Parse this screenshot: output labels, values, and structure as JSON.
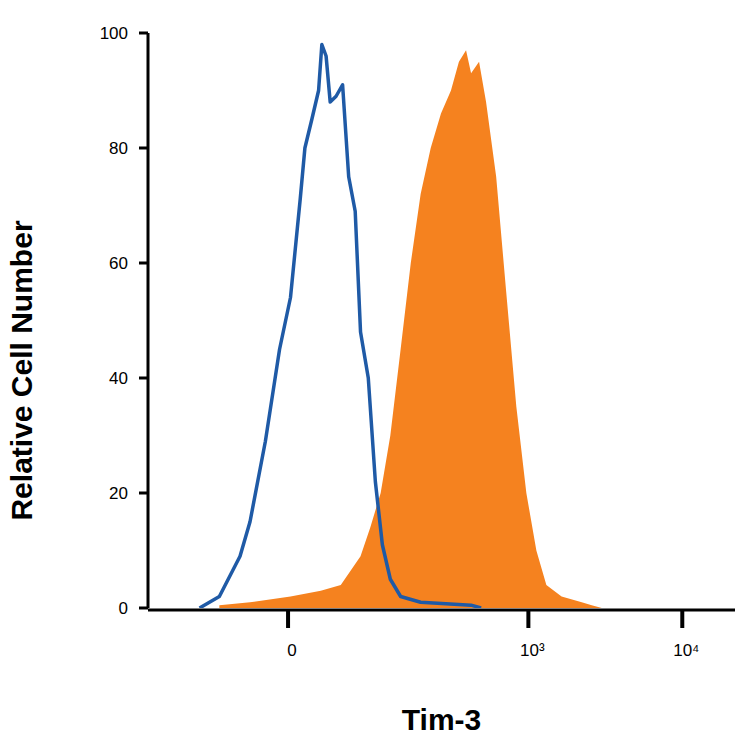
{
  "chart_data": {
    "type": "histogram",
    "x_label": "Tim-3",
    "y_label": "Relative Cell Number",
    "log": "x",
    "xlim": [
      -220,
      22000
    ],
    "ylim": [
      0,
      100
    ],
    "xticks": [
      {
        "value": 0,
        "label": "0"
      },
      {
        "value": 1000,
        "label": "10³"
      },
      {
        "value": 10000,
        "label": "10⁴"
      }
    ],
    "yticks": [
      0,
      20,
      40,
      60,
      80,
      100
    ],
    "series": [
      {
        "type": "area",
        "color": "#f5821f",
        "x": [
          -67,
          -33,
          2,
          28,
          48,
          72,
          86,
          103,
          121,
          143,
          168,
          196,
          229,
          268,
          312,
          352,
          392,
          423,
          477,
          530,
          617,
          717,
          835,
          970,
          1127,
          1309,
          1644,
          2222,
          2580,
          3000
        ],
        "values": [
          0.5,
          1,
          2,
          3,
          4,
          9,
          14,
          20,
          30,
          45,
          60,
          72,
          80,
          86,
          90,
          95,
          97,
          93,
          95,
          88,
          75,
          55,
          35,
          20,
          10,
          4,
          2,
          1,
          0.5,
          0
        ]
      },
      {
        "type": "line",
        "color": "#1f5aa6",
        "x": [
          -96,
          -67,
          -43,
          -33,
          -19,
          -7,
          2,
          10,
          14,
          20,
          26,
          29,
          33,
          37,
          43,
          50,
          57,
          65,
          72,
          83,
          94,
          106,
          121,
          143,
          196,
          423,
          492
        ],
        "values": [
          0,
          2,
          9,
          15,
          29,
          45,
          54,
          71,
          80,
          85,
          90,
          98,
          96,
          88,
          89,
          91,
          75,
          69,
          48,
          40,
          22,
          11,
          5,
          2,
          1,
          0.5,
          0
        ]
      }
    ]
  }
}
